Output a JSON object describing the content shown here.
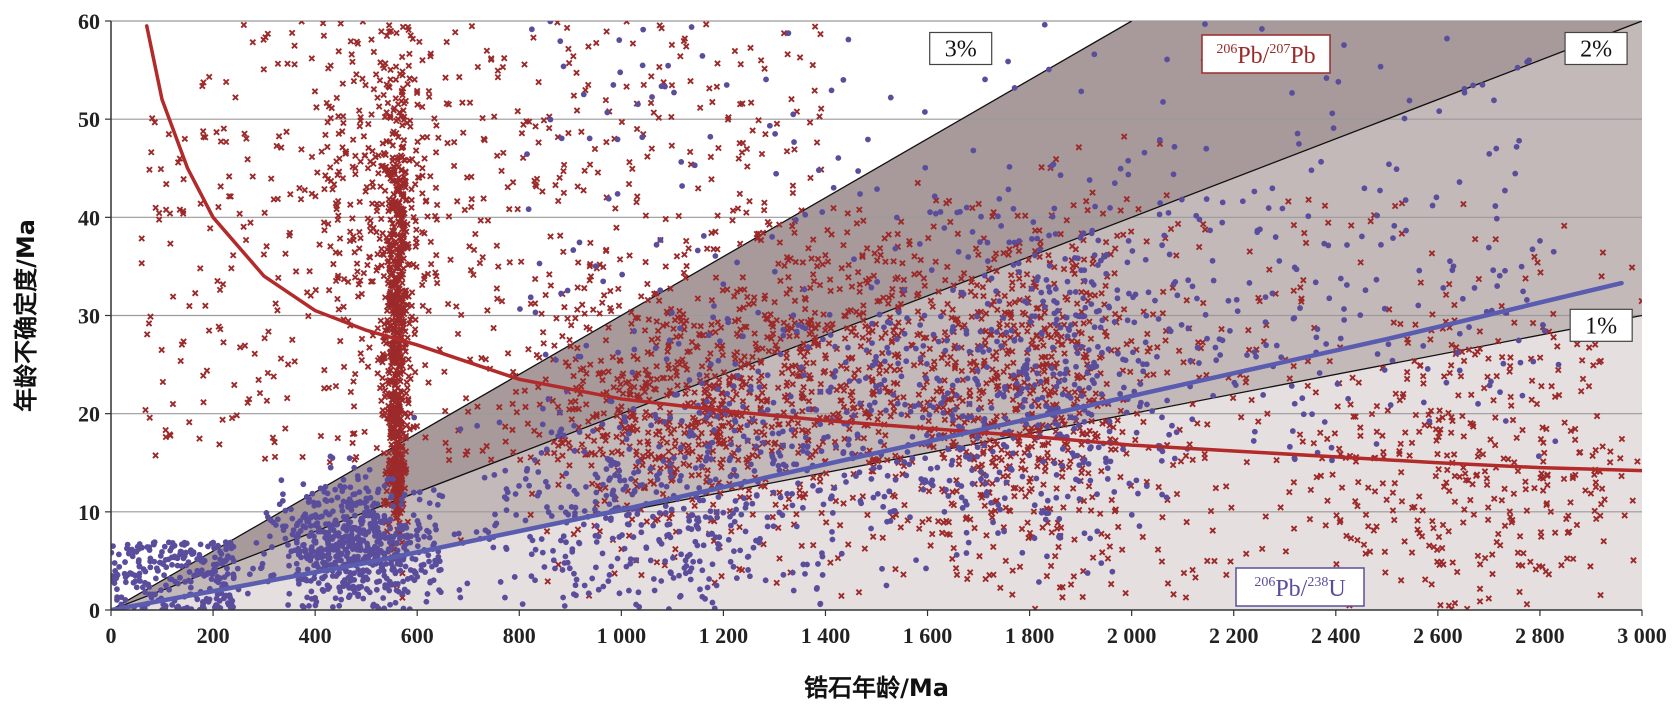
{
  "chart_data": {
    "type": "scatter",
    "title": "",
    "xlabel": "锆石年龄/Ma",
    "ylabel": "年龄不确定度/Ma",
    "xlim": [
      0,
      3000
    ],
    "ylim": [
      0,
      60
    ],
    "xticks": [
      0,
      200,
      400,
      600,
      800,
      1000,
      1200,
      1400,
      1600,
      1800,
      2000,
      2200,
      2400,
      2600,
      2800,
      3000
    ],
    "xtick_labels": [
      "0",
      "200",
      "400",
      "600",
      "800",
      "1 000",
      "1 200",
      "1 400",
      "1 600",
      "1 800",
      "2 000",
      "2 200",
      "2 400",
      "2 600",
      "2 800",
      "3 000"
    ],
    "yticks": [
      0,
      10,
      20,
      30,
      40,
      50,
      60
    ],
    "ytick_labels": [
      "0",
      "10",
      "20",
      "30",
      "40",
      "50",
      "60"
    ],
    "grid": "horizontal",
    "reference_lines": [
      {
        "label": "1%",
        "fraction": 0.01
      },
      {
        "label": "2%",
        "fraction": 0.02
      },
      {
        "label": "3%",
        "fraction": 0.03
      }
    ],
    "legend": [
      {
        "label_base": "206",
        "label_mid": "Pb/",
        "label_sup2": "207",
        "label_end": "Pb",
        "color": "#9c2a2a",
        "marker": "x",
        "placement": "top-center"
      },
      {
        "label_base": "206",
        "label_mid": "Pb/",
        "label_sup2": "238",
        "label_end": "U",
        "color": "#5a4e9c",
        "marker": "circle",
        "placement": "bottom-right"
      }
    ],
    "series": [
      {
        "name": "206Pb/207Pb",
        "marker": "x",
        "color": "#9c2a2a",
        "trend": [
          [
            70,
            59.5
          ],
          [
            100,
            52
          ],
          [
            150,
            45
          ],
          [
            200,
            40
          ],
          [
            300,
            34
          ],
          [
            400,
            30.5
          ],
          [
            500,
            28.5
          ],
          [
            600,
            27
          ],
          [
            800,
            23.5
          ],
          [
            1000,
            21.5
          ],
          [
            1200,
            20.3
          ],
          [
            1400,
            19.3
          ],
          [
            1600,
            18.5
          ],
          [
            1800,
            17.7
          ],
          [
            2000,
            16.8
          ],
          [
            2200,
            16.2
          ],
          [
            2400,
            15.6
          ],
          [
            2600,
            15
          ],
          [
            2800,
            14.5
          ],
          [
            3000,
            14.2
          ]
        ],
        "clusters": [
          {
            "x": [
              60,
              1400
            ],
            "y": [
              15,
              60
            ],
            "n": 700,
            "dist": "uniform"
          },
          {
            "cx": 560,
            "cy": 30,
            "sx": 12,
            "sy": 10,
            "n": 500,
            "dist": "gauss"
          },
          {
            "cx": 560,
            "cy": 15,
            "sx": 8,
            "sy": 4,
            "n": 200,
            "dist": "gauss"
          },
          {
            "cx": 540,
            "cy": 44,
            "sx": 60,
            "sy": 9,
            "n": 250,
            "dist": "gauss"
          },
          {
            "cx": 1100,
            "cy": 20,
            "sx": 140,
            "sy": 7,
            "n": 500,
            "dist": "gauss"
          },
          {
            "cx": 1450,
            "cy": 25,
            "sx": 180,
            "sy": 8,
            "n": 450,
            "dist": "gauss"
          },
          {
            "cx": 1800,
            "cy": 22,
            "sx": 140,
            "sy": 9,
            "n": 600,
            "dist": "gauss"
          },
          {
            "cx": 2650,
            "cy": 14,
            "sx": 170,
            "sy": 8,
            "n": 300,
            "dist": "gauss"
          },
          {
            "x": [
              1400,
              3000
            ],
            "y": [
              1,
              42
            ],
            "n": 350,
            "dist": "uniform"
          }
        ]
      },
      {
        "name": "206Pb/238U",
        "marker": "circle",
        "color": "#5a4e9c",
        "trend": [
          [
            0,
            0
          ],
          [
            500,
            4.8
          ],
          [
            1000,
            10.2
          ],
          [
            1500,
            16
          ],
          [
            2000,
            21.8
          ],
          [
            2500,
            27.6
          ],
          [
            2960,
            33.3
          ]
        ],
        "clusters": [
          {
            "x": [
              0,
              250
            ],
            "y": [
              0,
              7
            ],
            "n": 250,
            "dist": "uniform"
          },
          {
            "cx": 480,
            "cy": 6,
            "sx": 80,
            "sy": 3.5,
            "n": 700,
            "dist": "gauss"
          },
          {
            "cx": 1050,
            "cy": 10,
            "sx": 180,
            "sy": 6,
            "n": 450,
            "dist": "gauss"
          },
          {
            "cx": 1550,
            "cy": 18,
            "sx": 220,
            "sy": 8,
            "n": 350,
            "dist": "gauss"
          },
          {
            "cx": 1850,
            "cy": 25,
            "sx": 120,
            "sy": 9,
            "n": 300,
            "dist": "gauss"
          },
          {
            "x": [
              800,
              2800
            ],
            "y": [
              20,
              60
            ],
            "n": 250,
            "dist": "uniform"
          },
          {
            "x": [
              2000,
              2850
            ],
            "y": [
              15,
              45
            ],
            "n": 120,
            "dist": "uniform"
          }
        ]
      }
    ]
  }
}
